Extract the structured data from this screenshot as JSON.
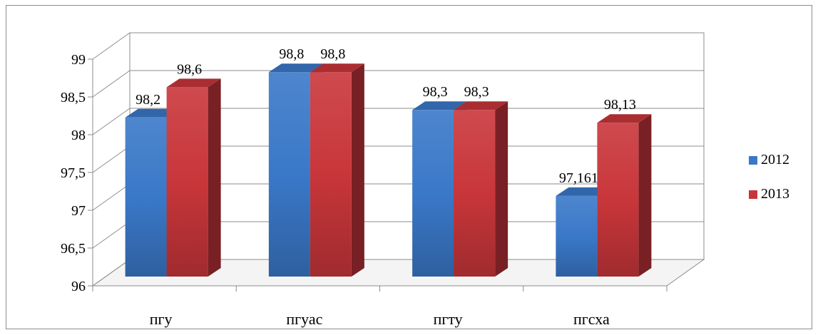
{
  "chart_data": {
    "type": "bar",
    "categories": [
      "пгу",
      "пгуас",
      "пгту",
      "пгсха"
    ],
    "series": [
      {
        "name": "2012",
        "values": [
          98.2,
          98.8,
          98.3,
          97.161
        ],
        "labels": [
          "98,2",
          "98,8",
          "98,3",
          "97,161"
        ],
        "color": "#3a78c8"
      },
      {
        "name": "2013",
        "values": [
          98.6,
          98.8,
          98.3,
          98.13
        ],
        "labels": [
          "98,6",
          "98,8",
          "98,3",
          "98,13"
        ],
        "color": "#c8363a"
      }
    ],
    "yticks": [
      "96",
      "96,5",
      "97",
      "97,5",
      "98",
      "98,5",
      "99"
    ],
    "ylim": [
      96,
      99
    ],
    "title": "",
    "xlabel": "",
    "ylabel": "",
    "grid": true,
    "legend_position": "right",
    "style": "3d-clustered-column"
  }
}
